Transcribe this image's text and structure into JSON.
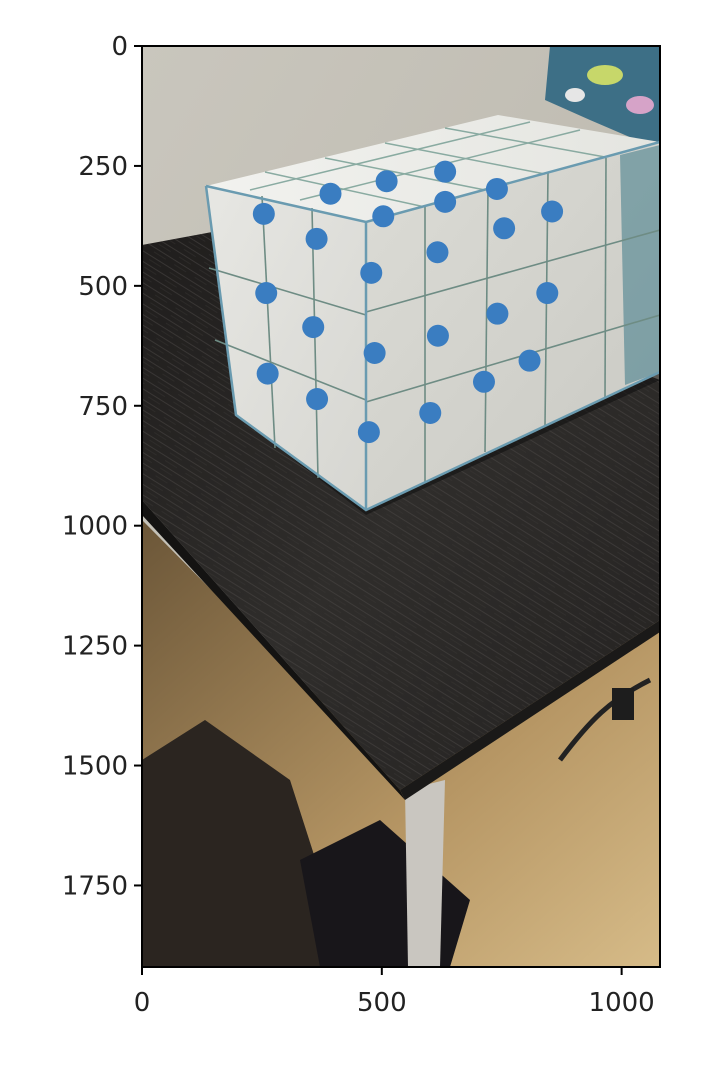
{
  "chart_data": {
    "type": "scatter",
    "title": "",
    "xlabel": "",
    "ylabel": "",
    "xlim": [
      0,
      1080
    ],
    "ylim": [
      1920,
      0
    ],
    "x_ticks": [
      "0",
      "500",
      "1000"
    ],
    "y_ticks": [
      "0",
      "250",
      "500",
      "750",
      "1000",
      "1250",
      "1500",
      "1750"
    ],
    "grid": false,
    "legend": "none",
    "background": "photo of a white grid-patterned paper box on a dark wooden side table",
    "series": [
      {
        "color": "#3a7dc1",
        "points": [
          {
            "x": 632,
            "y": 262
          },
          {
            "x": 510,
            "y": 282
          },
          {
            "x": 740,
            "y": 298
          },
          {
            "x": 393,
            "y": 308
          },
          {
            "x": 632,
            "y": 325
          },
          {
            "x": 254,
            "y": 350
          },
          {
            "x": 503,
            "y": 355
          },
          {
            "x": 855,
            "y": 345
          },
          {
            "x": 755,
            "y": 380
          },
          {
            "x": 364,
            "y": 402
          },
          {
            "x": 616,
            "y": 430
          },
          {
            "x": 478,
            "y": 473
          },
          {
            "x": 259,
            "y": 515
          },
          {
            "x": 845,
            "y": 515
          },
          {
            "x": 741,
            "y": 558
          },
          {
            "x": 357,
            "y": 586
          },
          {
            "x": 617,
            "y": 604
          },
          {
            "x": 485,
            "y": 640
          },
          {
            "x": 808,
            "y": 656
          },
          {
            "x": 262,
            "y": 683
          },
          {
            "x": 713,
            "y": 700
          },
          {
            "x": 365,
            "y": 736
          },
          {
            "x": 601,
            "y": 765
          },
          {
            "x": 473,
            "y": 805
          }
        ]
      }
    ]
  }
}
